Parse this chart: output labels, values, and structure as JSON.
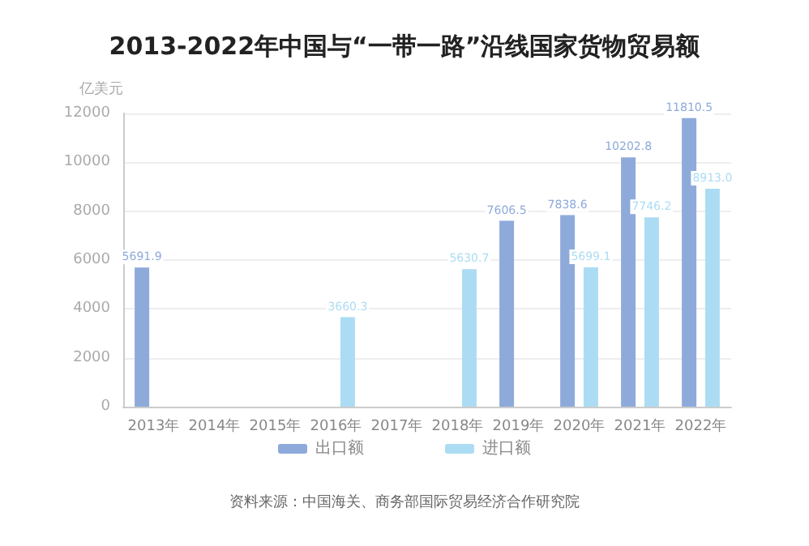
{
  "chart_data": {
    "type": "bar",
    "title": "2013-2022年中国与“一带一路”沿线国家货物贸易额",
    "ylabel": "亿美元",
    "categories": [
      "2013年",
      "2014年",
      "2015年",
      "2016年",
      "2017年",
      "2018年",
      "2019年",
      "2020年",
      "2021年",
      "2022年"
    ],
    "series": [
      {
        "name": "出口额",
        "color": "#8eaadb",
        "values": [
          5691.9,
          null,
          null,
          null,
          null,
          null,
          7606.5,
          7838.6,
          10202.8,
          11810.5
        ],
        "value_labels": [
          "5691.9",
          null,
          null,
          null,
          null,
          null,
          "7606.5",
          "7838.6",
          "10202.8",
          "11810.5"
        ]
      },
      {
        "name": "进口额",
        "color": "#acdcf4",
        "values": [
          null,
          null,
          null,
          3660.3,
          null,
          5630.7,
          null,
          5699.1,
          7746.2,
          8913.0
        ],
        "value_labels": [
          null,
          null,
          null,
          "3660.3",
          null,
          "5630.7",
          null,
          "5699.1",
          "7746.2",
          "8913.0"
        ]
      }
    ],
    "ylim": [
      0,
      12000
    ],
    "yticks": [
      0,
      2000,
      4000,
      6000,
      8000,
      10000,
      12000
    ],
    "grid": "y",
    "legend": "bottom",
    "annotations": [
      "资料来源：中国海关、商务部国际贸易经济合作研究院"
    ]
  }
}
